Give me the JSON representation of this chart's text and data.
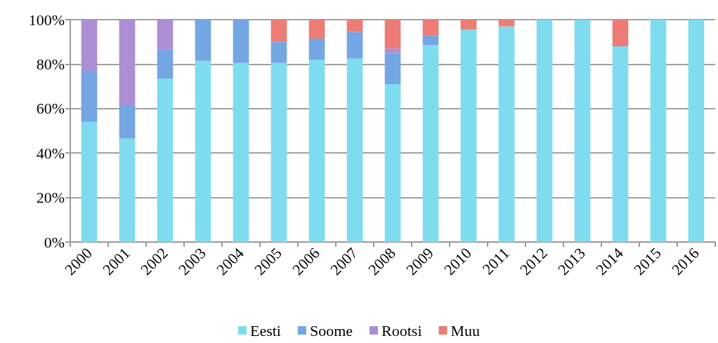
{
  "chart_data": {
    "type": "bar",
    "stacked": true,
    "categories": [
      "2000",
      "2001",
      "2002",
      "2003",
      "2004",
      "2005",
      "2006",
      "2007",
      "2008",
      "2009",
      "2010",
      "2011",
      "2012",
      "2013",
      "2014",
      "2015",
      "2016"
    ],
    "series": [
      {
        "name": "Eesti",
        "color": "#7fdcef",
        "values": [
          54,
          46.5,
          73.5,
          81.5,
          80.5,
          80.5,
          82,
          82.5,
          71,
          88.5,
          95.5,
          97,
          100,
          100,
          88,
          100,
          100
        ]
      },
      {
        "name": "Soome",
        "color": "#74a6e3",
        "values": [
          23,
          15,
          13,
          18.5,
          19.5,
          9.5,
          9.5,
          12,
          14,
          4.5,
          null,
          null,
          null,
          null,
          null,
          null,
          null
        ]
      },
      {
        "name": "Rootsi",
        "color": "#ab8fd2",
        "values": [
          23,
          38.5,
          13.5,
          null,
          null,
          null,
          null,
          null,
          2,
          null,
          null,
          null,
          null,
          null,
          null,
          null,
          null
        ]
      },
      {
        "name": "Muu",
        "color": "#ec7c75",
        "values": [
          null,
          null,
          null,
          null,
          null,
          10,
          8.5,
          5.5,
          13,
          7,
          4.5,
          3,
          null,
          null,
          12,
          null,
          null
        ]
      }
    ],
    "ylim": [
      0,
      100
    ],
    "yticks": [
      {
        "value": 0,
        "label": "0%"
      },
      {
        "value": 20,
        "label": "20%"
      },
      {
        "value": 40,
        "label": "40%"
      },
      {
        "value": 60,
        "label": "60%"
      },
      {
        "value": 80,
        "label": "80%"
      },
      {
        "value": 100,
        "label": "100%"
      }
    ],
    "grid": "y",
    "legend": "bottom"
  }
}
